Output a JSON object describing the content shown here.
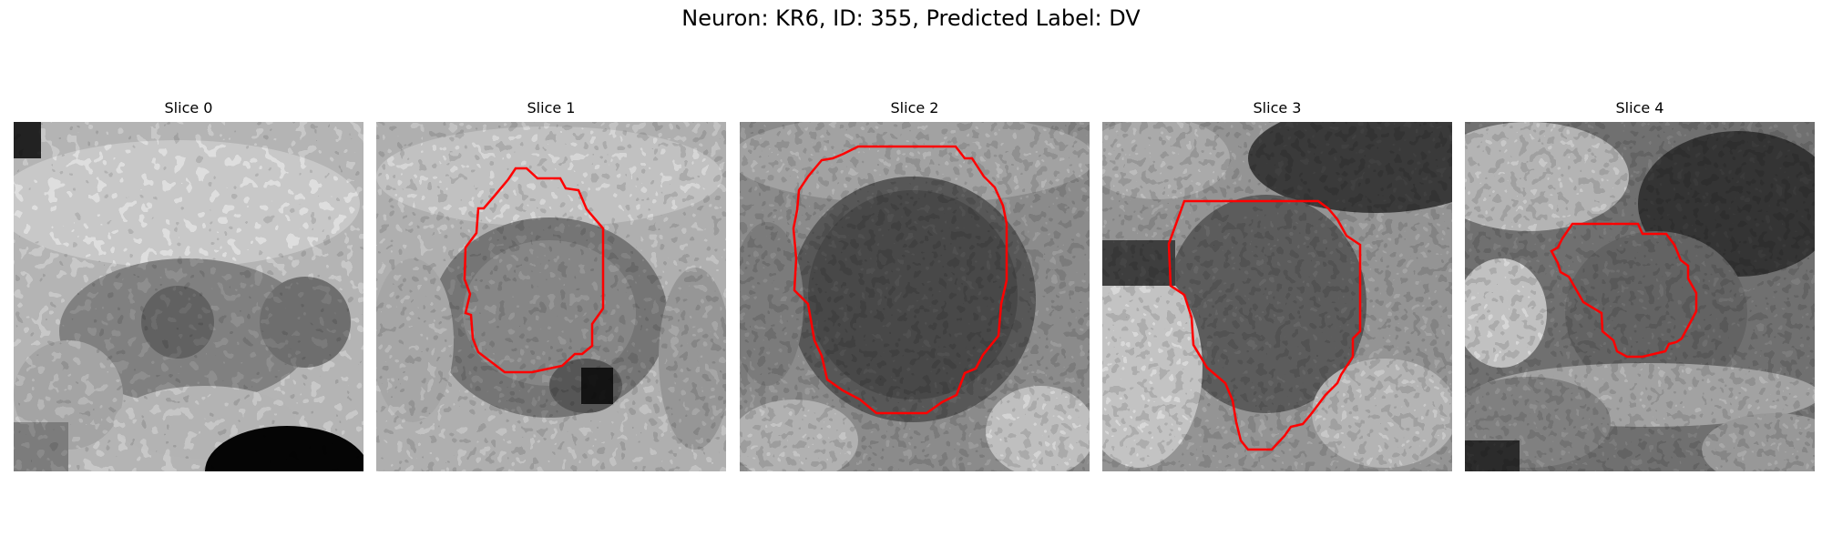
{
  "figure": {
    "title": "Neuron: KR6, ID: 355, Predicted Label: DV"
  },
  "colors": {
    "contour": "#ff0000",
    "background": "#ffffff"
  },
  "slices": [
    {
      "label": "Slice 0",
      "has_contour": false
    },
    {
      "label": "Slice 1",
      "has_contour": true
    },
    {
      "label": "Slice 2",
      "has_contour": true
    },
    {
      "label": "Slice 3",
      "has_contour": true
    },
    {
      "label": "Slice 4",
      "has_contour": true
    }
  ]
}
